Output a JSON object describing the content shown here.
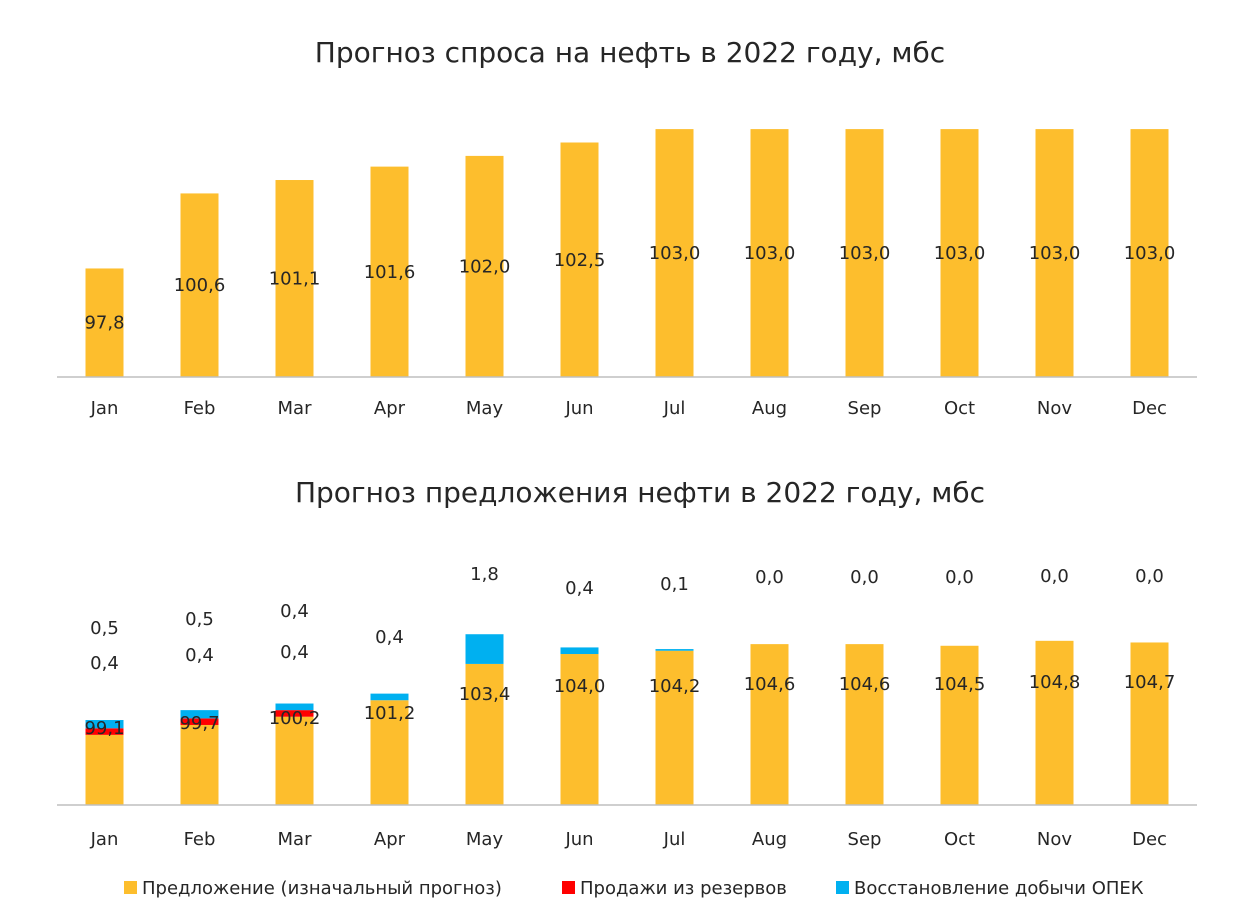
{
  "colors": {
    "supply": "#FDBE2D",
    "reserves": "#FF0000",
    "opec": "#00B0F0",
    "axis": "#BFBFBF",
    "text": "#262626"
  },
  "chart_data": [
    {
      "type": "bar",
      "title": "Прогноз спроса на нефть в 2022 году, мбс",
      "categories": [
        "Jan",
        "Feb",
        "Mar",
        "Apr",
        "May",
        "Jun",
        "Jul",
        "Aug",
        "Sep",
        "Oct",
        "Nov",
        "Dec"
      ],
      "series": [
        {
          "values": [
            97.8,
            100.6,
            101.1,
            101.6,
            102.0,
            102.5,
            103.0,
            103.0,
            103.0,
            103.0,
            103.0,
            103.0
          ],
          "labels": [
            "97,8",
            "100,6",
            "101,1",
            "101,6",
            "102,0",
            "102,5",
            "103,0",
            "103,0",
            "103,0",
            "103,0",
            "103,0",
            "103,0"
          ]
        }
      ],
      "grid": false,
      "legend": "none"
    },
    {
      "type": "bar",
      "stacked": true,
      "title": "Прогноз предложения нефти в 2022 году, мбс",
      "categories": [
        "Jan",
        "Feb",
        "Mar",
        "Apr",
        "May",
        "Jun",
        "Jul",
        "Aug",
        "Sep",
        "Oct",
        "Nov",
        "Dec"
      ],
      "series": [
        {
          "name": "Предложение (изначальный прогноз)",
          "color_key": "supply",
          "values": [
            99.1,
            99.7,
            100.2,
            101.2,
            103.4,
            104.0,
            104.2,
            104.6,
            104.6,
            104.5,
            104.8,
            104.7
          ],
          "labels": [
            "99,1",
            "99,7",
            "100,2",
            "101,2",
            "103,4",
            "104,0",
            "104,2",
            "104,6",
            "104,6",
            "104,5",
            "104,8",
            "104,7"
          ]
        },
        {
          "name": "Продажи из резервов",
          "color_key": "reserves",
          "values": [
            0.4,
            0.4,
            0.4,
            0.0,
            0.0,
            0.0,
            0.0,
            0.0,
            0.0,
            0.0,
            0.0,
            0.0
          ],
          "labels": [
            "0,4",
            "0,4",
            "0,4",
            "",
            "",
            "",
            "",
            "",
            "",
            "",
            "",
            ""
          ]
        },
        {
          "name": "Восстановление добычи ОПЕК",
          "color_key": "opec",
          "values": [
            0.5,
            0.5,
            0.4,
            0.4,
            1.8,
            0.4,
            0.1,
            0.0,
            0.0,
            0.0,
            0.0,
            0.0
          ],
          "labels": [
            "0,5",
            "0,5",
            "0,4",
            "0,4",
            "1,8",
            "0,4",
            "0,1",
            "0,0",
            "0,0",
            "0,0",
            "0,0",
            "0,0"
          ]
        }
      ],
      "grid": false,
      "legend": "bottom"
    }
  ]
}
